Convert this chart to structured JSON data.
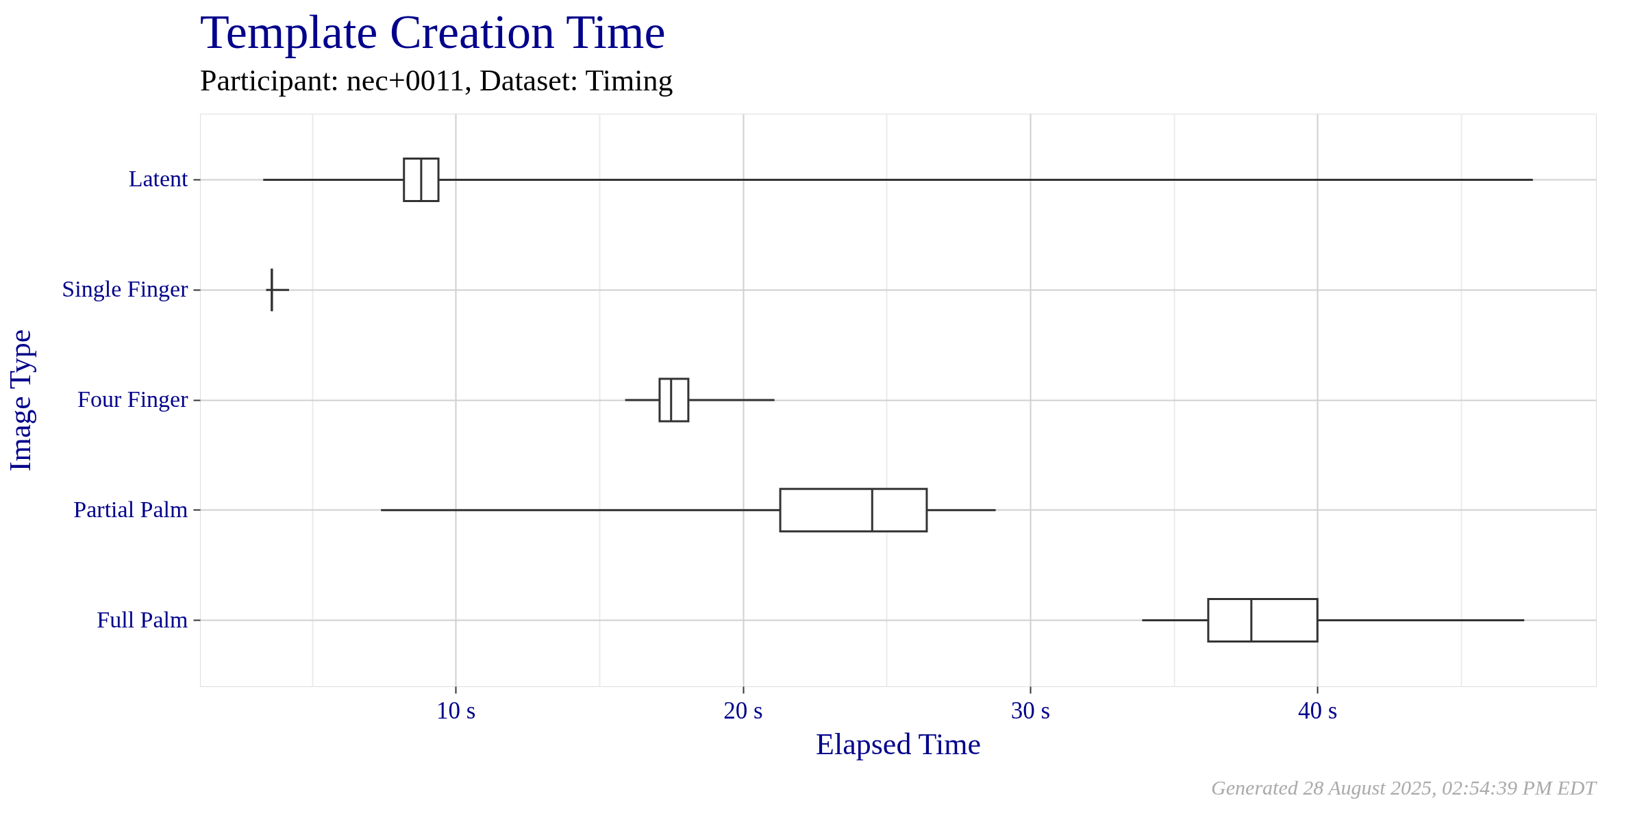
{
  "chart_data": {
    "type": "box",
    "orientation": "horizontal",
    "title": "Template Creation Time",
    "subtitle": "Participant: nec+0011, Dataset: Timing",
    "xlabel": "Elapsed Time",
    "ylabel": "Image Type",
    "categories": [
      "Latent",
      "Single Finger",
      "Four Finger",
      "Partial Palm",
      "Full Palm"
    ],
    "boxes": [
      {
        "low": 3.3,
        "q1": 8.2,
        "median": 8.8,
        "q3": 9.4,
        "high": 47.5
      },
      {
        "low": 3.4,
        "q1": 3.6,
        "median": 3.6,
        "q3": 3.6,
        "high": 4.2
      },
      {
        "low": 15.9,
        "q1": 17.1,
        "median": 17.5,
        "q3": 18.1,
        "high": 21.1
      },
      {
        "low": 7.4,
        "q1": 21.3,
        "median": 24.5,
        "q3": 26.4,
        "high": 28.8
      },
      {
        "low": 33.9,
        "q1": 36.2,
        "median": 37.7,
        "q3": 40.0,
        "high": 47.2
      }
    ],
    "color": "#333333",
    "xlim": [
      1.1,
      49.7
    ],
    "xticks": [
      {
        "value": 5,
        "label": null
      },
      {
        "value": 10,
        "label": "10 s"
      },
      {
        "value": 15,
        "label": null
      },
      {
        "value": 20,
        "label": "20 s"
      },
      {
        "value": 25,
        "label": null
      },
      {
        "value": 30,
        "label": "30 s"
      },
      {
        "value": 35,
        "label": null
      },
      {
        "value": 40,
        "label": "40 s"
      },
      {
        "value": 45,
        "label": null
      }
    ],
    "grid": true,
    "annotations": [
      "Generated 28 August 2025, 02:54:39 PM EDT"
    ]
  }
}
